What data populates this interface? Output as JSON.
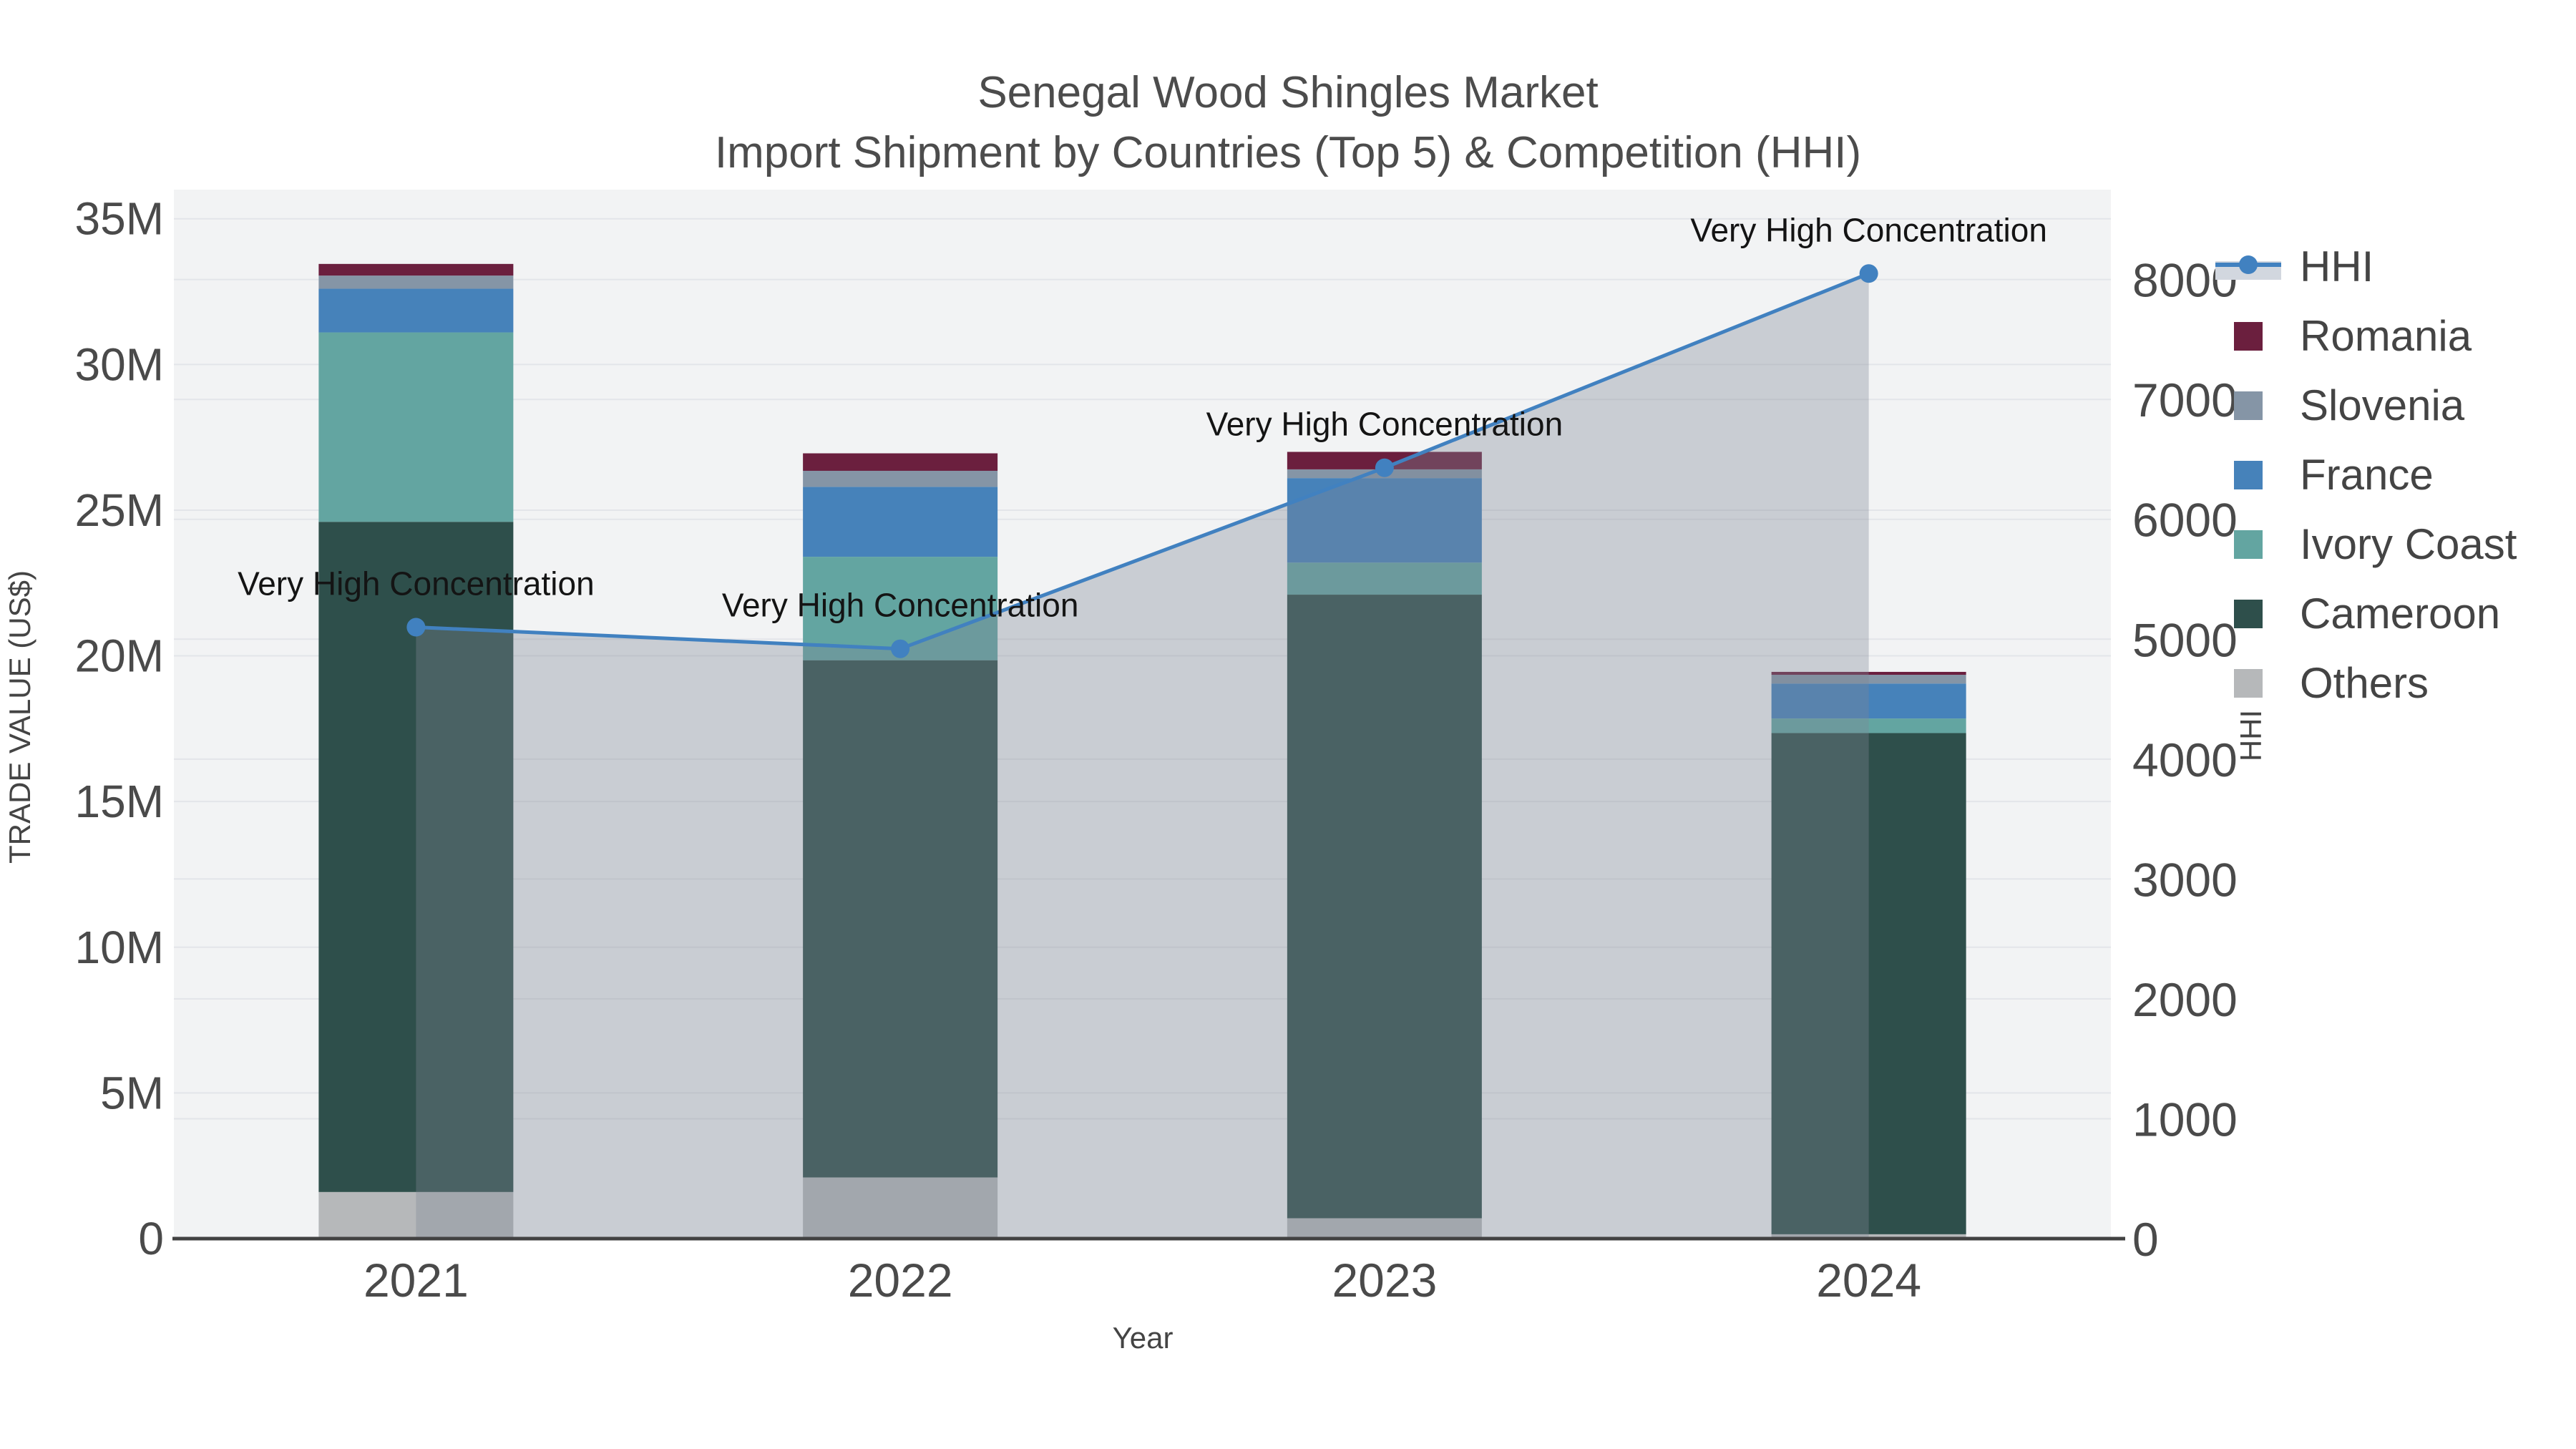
{
  "title": {
    "line1": "Senegal Wood Shingles Market",
    "line2": "Import Shipment by Countries (Top 5) & Competition (HHI)"
  },
  "axes": {
    "x_title": "Year",
    "y_left_title": "TRADE VALUE (US$)",
    "y_right_title": "HHI",
    "y_left_ticks": [
      "0",
      "5M",
      "10M",
      "15M",
      "20M",
      "25M",
      "30M",
      "35M"
    ],
    "y_left_tick_values": [
      0,
      5,
      10,
      15,
      20,
      25,
      30,
      35
    ],
    "y_right_ticks": [
      "0",
      "1000",
      "2000",
      "3000",
      "4000",
      "5000",
      "6000",
      "7000",
      "8000"
    ],
    "y_right_tick_values": [
      0,
      1000,
      2000,
      3000,
      4000,
      5000,
      6000,
      7000,
      8000
    ]
  },
  "legend": [
    {
      "label": "HHI",
      "type": "line",
      "color": "#4181c0"
    },
    {
      "label": "Romania",
      "type": "bar",
      "color": "#6b1f3e"
    },
    {
      "label": "Slovenia",
      "type": "bar",
      "color": "#8595a6"
    },
    {
      "label": "France",
      "type": "bar",
      "color": "#4682ba"
    },
    {
      "label": "Ivory Coast",
      "type": "bar",
      "color": "#63a5a1"
    },
    {
      "label": "Cameroon",
      "type": "bar",
      "color": "#2e4f4b"
    },
    {
      "label": "Others",
      "type": "bar",
      "color": "#b6b8ba"
    }
  ],
  "chart_data": {
    "type": "bar",
    "title": "Senegal Wood Shingles Market — Import Shipment by Countries (Top 5) & Competition (HHI)",
    "categories": [
      "2021",
      "2022",
      "2023",
      "2024"
    ],
    "xlabel": "Year",
    "ylabel_left": "TRADE VALUE (US$)",
    "ylabel_right": "HHI",
    "y_left_range_millions": [
      0,
      36
    ],
    "y_right_range": [
      0,
      8750
    ],
    "grid": true,
    "legend_position": "right",
    "series": [
      {
        "name": "Others",
        "color": "#b6b8ba",
        "values_millions": [
          1.6,
          2.1,
          0.7,
          0.15
        ]
      },
      {
        "name": "Cameroon",
        "color": "#2e4f4b",
        "values_millions": [
          23.0,
          17.75,
          21.4,
          17.2
        ]
      },
      {
        "name": "Ivory Coast",
        "color": "#63a5a1",
        "values_millions": [
          6.5,
          3.55,
          1.1,
          0.5
        ]
      },
      {
        "name": "France",
        "color": "#4682ba",
        "values_millions": [
          1.5,
          2.4,
          2.9,
          1.2
        ]
      },
      {
        "name": "Slovenia",
        "color": "#8595a6",
        "values_millions": [
          0.45,
          0.55,
          0.3,
          0.3
        ]
      },
      {
        "name": "Romania",
        "color": "#6b1f3e",
        "values_millions": [
          0.4,
          0.6,
          0.6,
          0.1
        ]
      }
    ],
    "bar_totals_millions": [
      33.45,
      27.0,
      27.0,
      19.45
    ],
    "line_series": {
      "name": "HHI",
      "color": "#4181c0",
      "area_fill": "rgba(125,134,150,0.35)",
      "values": [
        5100,
        4920,
        6430,
        8050
      ]
    },
    "annotations": [
      {
        "x": "2021",
        "text": "Very High Concentration"
      },
      {
        "x": "2022",
        "text": "Very High Concentration"
      },
      {
        "x": "2023",
        "text": "Very High Concentration"
      },
      {
        "x": "2024",
        "text": "Very High Concentration"
      }
    ],
    "colors": {
      "plot_background": "#f2f3f4",
      "grid_line": "#e3e5e9",
      "axis_line": "#424242",
      "tick_text": "#4a4a4a",
      "annotation_text": "#141414"
    }
  }
}
